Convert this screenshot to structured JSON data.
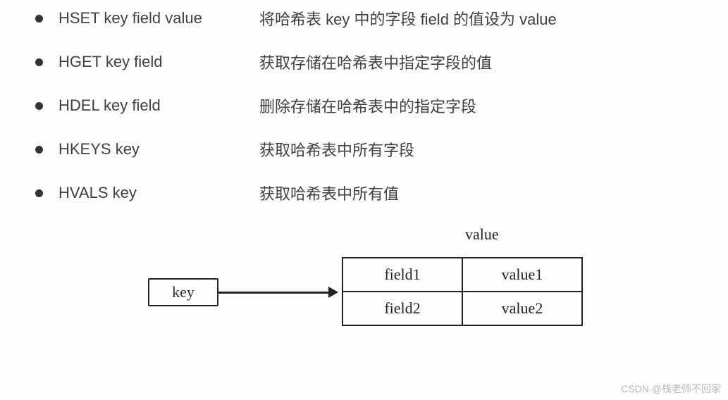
{
  "commands": [
    {
      "cmd": "HSET key field value",
      "desc": "将哈希表 key 中的字段 field 的值设为 value"
    },
    {
      "cmd": "HGET key field",
      "desc": "获取存储在哈希表中指定字段的值"
    },
    {
      "cmd": "HDEL key field",
      "desc": "删除存储在哈希表中的指定字段"
    },
    {
      "cmd": "HKEYS key",
      "desc": "获取哈希表中所有字段"
    },
    {
      "cmd": "HVALS key",
      "desc": "获取哈希表中所有值"
    }
  ],
  "diagram": {
    "valueLabel": "value",
    "keyLabel": "key",
    "cells": {
      "r0c0": "field1",
      "r0c1": "value1",
      "r1c0": "field2",
      "r1c1": "value2"
    }
  },
  "watermark": "CSDN @栈老师不回家"
}
